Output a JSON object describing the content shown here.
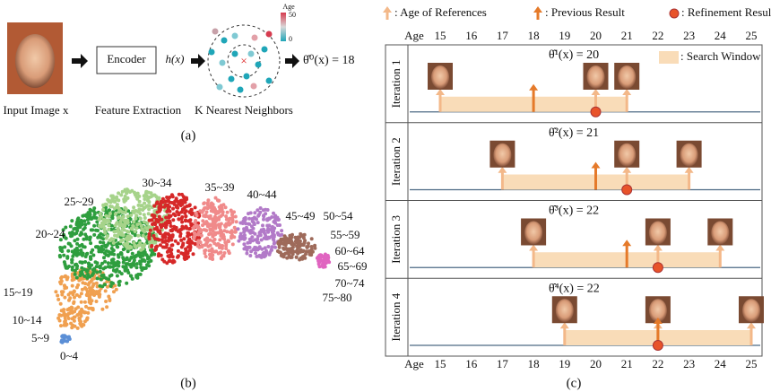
{
  "panel_a": {
    "input_label": "Input Image x",
    "encoder": "Encoder",
    "hx": "h(x)",
    "feature_label": "Feature Extraction",
    "knn_label": "K Nearest Neighbors",
    "age_title": "Age",
    "age_max": "50",
    "age_min": "0",
    "estimate": "θ̂⁰(x)  = 18",
    "caption": "(a)"
  },
  "panel_b": {
    "cluster_labels": [
      "0~4",
      "5~9",
      "10~14",
      "15~19",
      "20~24",
      "25~29",
      "30~34",
      "35~39",
      "40~44",
      "45~49",
      "50~54",
      "55~59",
      "60~64",
      "65~69",
      "70~74",
      "75~80"
    ],
    "caption": "(b)"
  },
  "panel_c": {
    "legend_references": ": Age of References",
    "legend_previous": ": Previous Result",
    "legend_refinement": ": Refinement Result",
    "legend_window": ": Search Window",
    "age_label": "Age",
    "ages": [
      15,
      16,
      17,
      18,
      19,
      20,
      21,
      22,
      23,
      24,
      25
    ],
    "iterations": [
      {
        "label": "Iteration 1",
        "estimate": "θ̂¹(x)  = 20",
        "references": [
          15,
          20,
          21
        ],
        "previous": 18,
        "refinement": 20,
        "window": [
          15,
          21
        ]
      },
      {
        "label": "Iteration 2",
        "estimate": "θ̂²(x)  = 21",
        "references": [
          17,
          21,
          23
        ],
        "previous": 20,
        "refinement": 21,
        "window": [
          17,
          23
        ]
      },
      {
        "label": "Iteration 3",
        "estimate": "θ̂³(x)  = 22",
        "references": [
          18,
          22,
          24
        ],
        "previous": 21,
        "refinement": 22,
        "window": [
          18,
          24
        ]
      },
      {
        "label": "Iteration 4",
        "estimate": "θ̂⁴(x)  = 22",
        "references": [
          19,
          22,
          25
        ],
        "previous": 22,
        "refinement": 22,
        "window": [
          19,
          25
        ]
      }
    ],
    "caption": "(c)"
  }
}
